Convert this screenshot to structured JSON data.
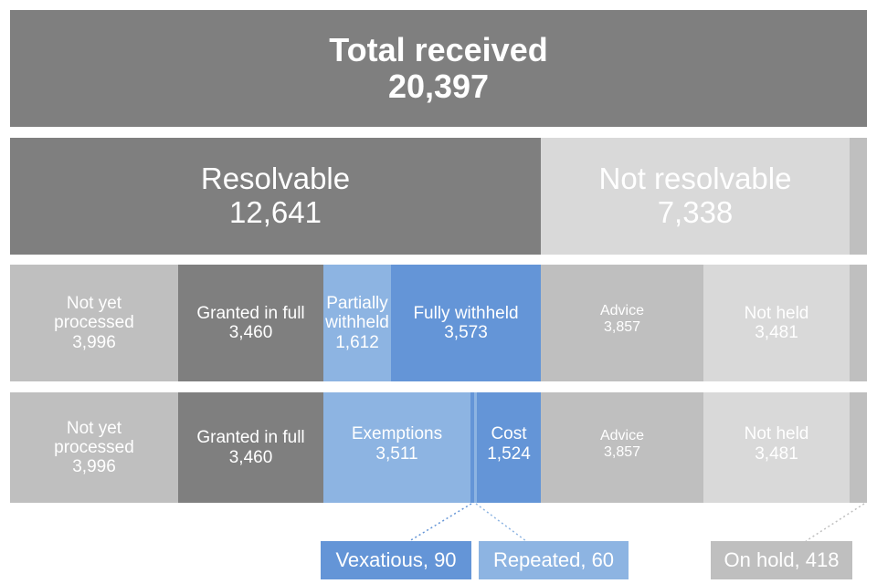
{
  "total": {
    "label": "Total received",
    "value": "20,397"
  },
  "row2": {
    "resolvable": {
      "label": "Resolvable",
      "value": "12,641"
    },
    "not_resolvable": {
      "label": "Not resolvable",
      "value": "7,338"
    }
  },
  "row3": {
    "not_yet_processed": {
      "label": "Not yet processed",
      "value": "3,996"
    },
    "granted_in_full": {
      "label": "Granted in full",
      "value": "3,460"
    },
    "partially_withheld": {
      "label": "Partially withheld",
      "value": "1,612"
    },
    "fully_withheld": {
      "label": "Fully withheld",
      "value": "3,573"
    },
    "advice": {
      "label": "Advice",
      "value": "3,857"
    },
    "not_held": {
      "label": "Not held",
      "value": "3,481"
    }
  },
  "row4": {
    "not_yet_processed": {
      "label": "Not yet processed",
      "value": "3,996"
    },
    "granted_in_full": {
      "label": "Granted in full",
      "value": "3,460"
    },
    "exemptions": {
      "label": "Exemptions",
      "value": "3,511"
    },
    "cost": {
      "label": "Cost",
      "value": "1,524"
    },
    "advice": {
      "label": "Advice",
      "value": "3,857"
    },
    "not_held": {
      "label": "Not held",
      "value": "3,481"
    }
  },
  "callouts": {
    "vexatious": "Vexatious, 90",
    "repeated": "Repeated, 60",
    "on_hold": "On hold, 418"
  },
  "colors": {
    "dark_grey": "#7f7f7f",
    "mid_grey": "#bfbfbf",
    "light_grey": "#d9d9d9",
    "pale_blue": "#8db4e2",
    "blue": "#6495d7"
  }
}
